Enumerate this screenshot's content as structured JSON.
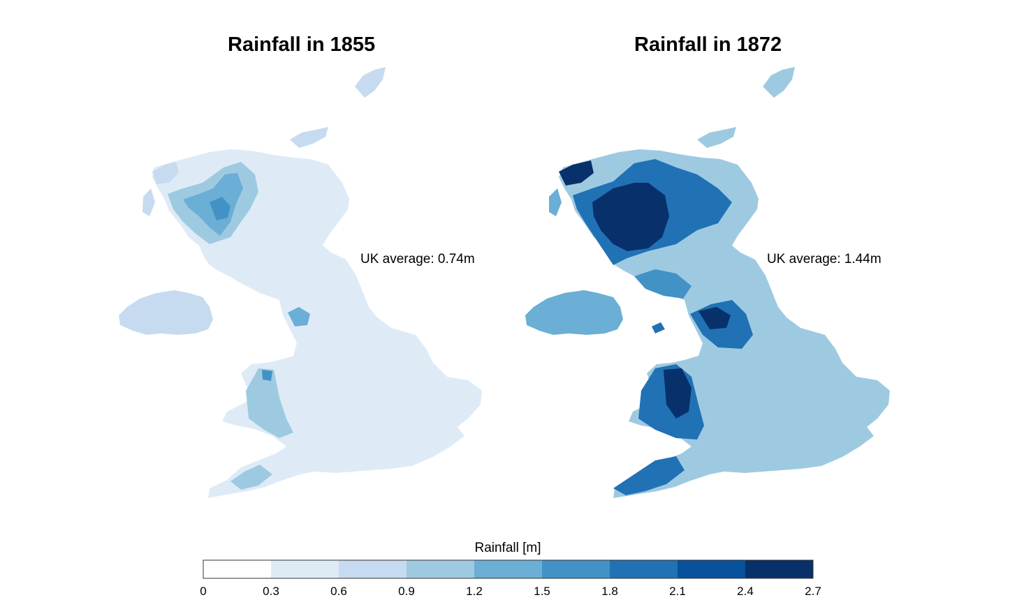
{
  "panels": [
    {
      "title": "Rainfall in 1855",
      "average_label": "UK average: 0.74m",
      "average_m": 0.74
    },
    {
      "title": "Rainfall in 1872",
      "average_label": "UK average: 1.44m",
      "average_m": 1.44
    }
  ],
  "colorbar": {
    "title": "Rainfall [m]",
    "ticks": [
      "0",
      "0.3",
      "0.6",
      "0.9",
      "1.2",
      "1.5",
      "1.8",
      "2.1",
      "2.4",
      "2.7"
    ],
    "bins": [
      {
        "range": "0-0.3",
        "color": "#ffffff"
      },
      {
        "range": "0.3-0.6",
        "color": "#deebf7"
      },
      {
        "range": "0.6-0.9",
        "color": "#c6dbef"
      },
      {
        "range": "0.9-1.2",
        "color": "#9ecae1"
      },
      {
        "range": "1.2-1.5",
        "color": "#6baed6"
      },
      {
        "range": "1.5-1.8",
        "color": "#4292c6"
      },
      {
        "range": "1.8-2.1",
        "color": "#2171b5"
      },
      {
        "range": "2.1-2.4",
        "color": "#08519c"
      },
      {
        "range": "2.4-2.7",
        "color": "#08306b"
      }
    ]
  }
}
